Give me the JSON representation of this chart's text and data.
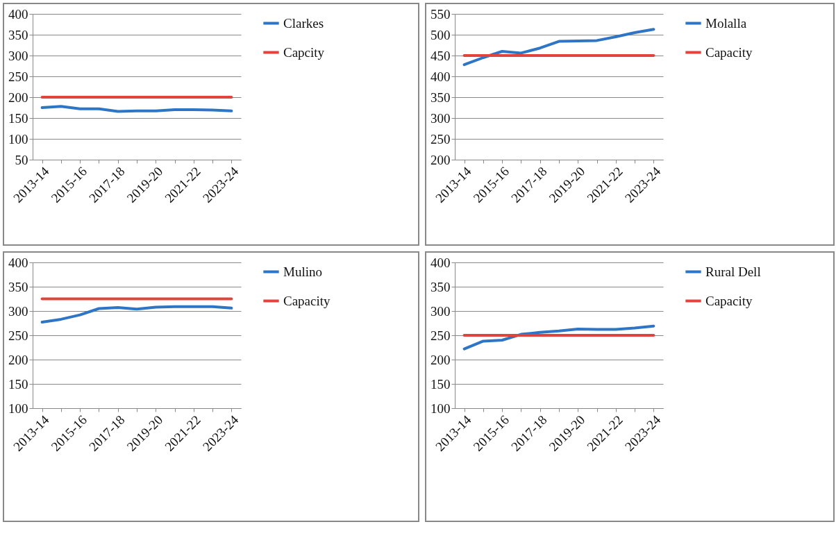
{
  "chart_data": [
    {
      "type": "line",
      "categories": [
        "2013-14",
        null,
        "2015-16",
        null,
        "2017-18",
        null,
        "2019-20",
        null,
        "2021-22",
        null,
        "2023-24"
      ],
      "ylim": [
        50,
        400
      ],
      "yticks": [
        50,
        100,
        150,
        200,
        250,
        300,
        350,
        400
      ],
      "grid": "y",
      "legend": "right",
      "marker": "none",
      "line_style": "solid",
      "series": [
        {
          "name": "Clarkes",
          "color": "#2e75c6",
          "values": [
            175,
            178,
            172,
            172,
            166,
            167,
            167,
            170,
            170,
            169,
            167
          ]
        },
        {
          "name": "Capcity",
          "color": "#e0443c",
          "values": [
            200,
            200,
            200,
            200,
            200,
            200,
            200,
            200,
            200,
            200,
            200
          ]
        }
      ]
    },
    {
      "type": "line",
      "categories": [
        "2013-14",
        null,
        "2015-16",
        null,
        "2017-18",
        null,
        "2019-20",
        null,
        "2021-22",
        null,
        "2023-24"
      ],
      "ylim": [
        200,
        550
      ],
      "yticks": [
        200,
        250,
        300,
        350,
        400,
        450,
        500,
        550
      ],
      "grid": "y",
      "legend": "right",
      "marker": "none",
      "line_style": "solid",
      "series": [
        {
          "name": "Molalla",
          "color": "#2e75c6",
          "values": [
            428,
            445,
            460,
            456,
            468,
            484,
            485,
            486,
            495,
            505,
            513
          ]
        },
        {
          "name": "Capacity",
          "color": "#e0443c",
          "values": [
            450,
            450,
            450,
            450,
            450,
            450,
            450,
            450,
            450,
            450,
            450
          ]
        }
      ]
    },
    {
      "type": "line",
      "categories": [
        "2013-14",
        null,
        "2015-16",
        null,
        "2017-18",
        null,
        "2019-20",
        null,
        "2021-22",
        null,
        "2023-24"
      ],
      "ylim": [
        100,
        400
      ],
      "yticks": [
        100,
        150,
        200,
        250,
        300,
        350,
        400
      ],
      "grid": "y",
      "legend": "right",
      "marker": "none",
      "line_style": "solid",
      "series": [
        {
          "name": "Mulino",
          "color": "#2e75c6",
          "values": [
            277,
            283,
            292,
            305,
            307,
            304,
            308,
            309,
            309,
            309,
            306
          ]
        },
        {
          "name": "Capacity",
          "color": "#e0443c",
          "values": [
            325,
            325,
            325,
            325,
            325,
            325,
            325,
            325,
            325,
            325,
            325
          ]
        }
      ]
    },
    {
      "type": "line",
      "categories": [
        "2013-14",
        null,
        "2015-16",
        null,
        "2017-18",
        null,
        "2019-20",
        null,
        "2021-22",
        null,
        "2023-24"
      ],
      "ylim": [
        100,
        400
      ],
      "yticks": [
        100,
        150,
        200,
        250,
        300,
        350,
        400
      ],
      "grid": "y",
      "legend": "right",
      "marker": "none",
      "line_style": "solid",
      "series": [
        {
          "name": "Rural Dell",
          "color": "#2e75c6",
          "values": [
            222,
            238,
            240,
            252,
            256,
            259,
            263,
            262,
            262,
            265,
            269
          ]
        },
        {
          "name": "Capacity",
          "color": "#e0443c",
          "values": [
            250,
            250,
            250,
            250,
            250,
            250,
            250,
            250,
            250,
            250,
            250
          ]
        }
      ]
    }
  ]
}
